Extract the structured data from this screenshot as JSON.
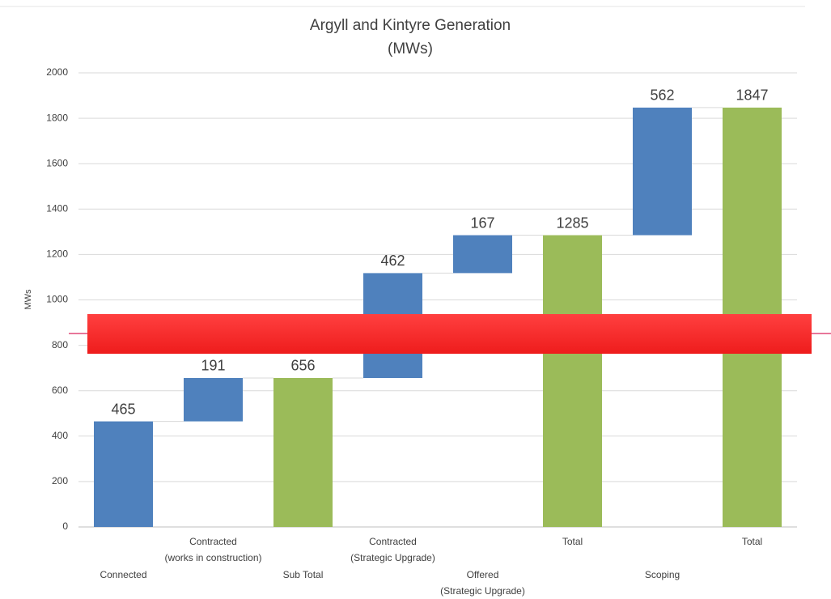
{
  "chart_data": {
    "type": "waterfall",
    "title": [
      "Argyll and Kintyre Generation",
      "(MWs)"
    ],
    "y_label": "MWs",
    "categories": [
      [
        "Connected"
      ],
      [
        "Contracted",
        "(works in construction)"
      ],
      [
        "Sub Total"
      ],
      [
        "Contracted",
        "(Strategic Upgrade)"
      ],
      [
        "Offered",
        "(Strategic Upgrade)"
      ],
      [
        "Total"
      ],
      [
        "Scoping"
      ],
      [
        "Total"
      ]
    ],
    "values": [
      465,
      191,
      656,
      462,
      167,
      1285,
      562,
      1847
    ],
    "kinds": [
      "increase",
      "increase",
      "total",
      "increase",
      "increase",
      "total",
      "increase",
      "total"
    ],
    "colors": {
      "increase": "#4f81bd",
      "total": "#9bbb59"
    },
    "ylim": [
      0,
      2000
    ],
    "yticks": [
      0,
      200,
      400,
      600,
      800,
      1000,
      1200,
      1400,
      1600,
      1800,
      2000
    ],
    "grid": true
  }
}
